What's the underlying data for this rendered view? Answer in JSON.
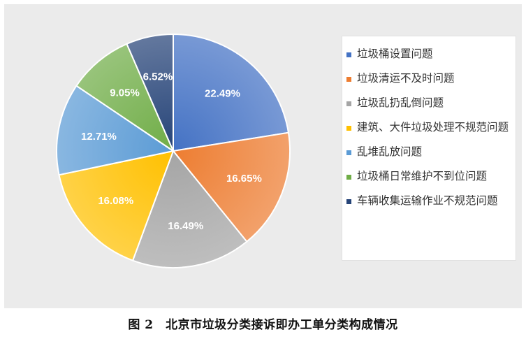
{
  "chart_data": {
    "type": "pie",
    "categories": [
      "垃圾桶设置问题",
      "垃圾清运不及时问题",
      "垃圾乱扔乱倒问题",
      "建筑、大件垃圾处理不规范问题",
      "乱堆乱放问题",
      "垃圾桶日常维护不到位问题",
      "车辆收集运输作业不规范问题"
    ],
    "values": [
      22.49,
      16.65,
      16.49,
      16.08,
      12.71,
      9.05,
      6.52
    ],
    "value_labels": [
      "22.49%",
      "16.65%",
      "16.49%",
      "16.08%",
      "12.71%",
      "9.05%",
      "6.52%"
    ],
    "colors": [
      "#4472c4",
      "#ed7d31",
      "#a5a5a5",
      "#ffc000",
      "#5b9bd5",
      "#70ad47",
      "#264478"
    ],
    "title": "",
    "legend_position": "right",
    "start_angle": "12 o'clock, clockwise"
  },
  "caption": "图 2　北京市垃圾分类接诉即办工单分类构成情况"
}
